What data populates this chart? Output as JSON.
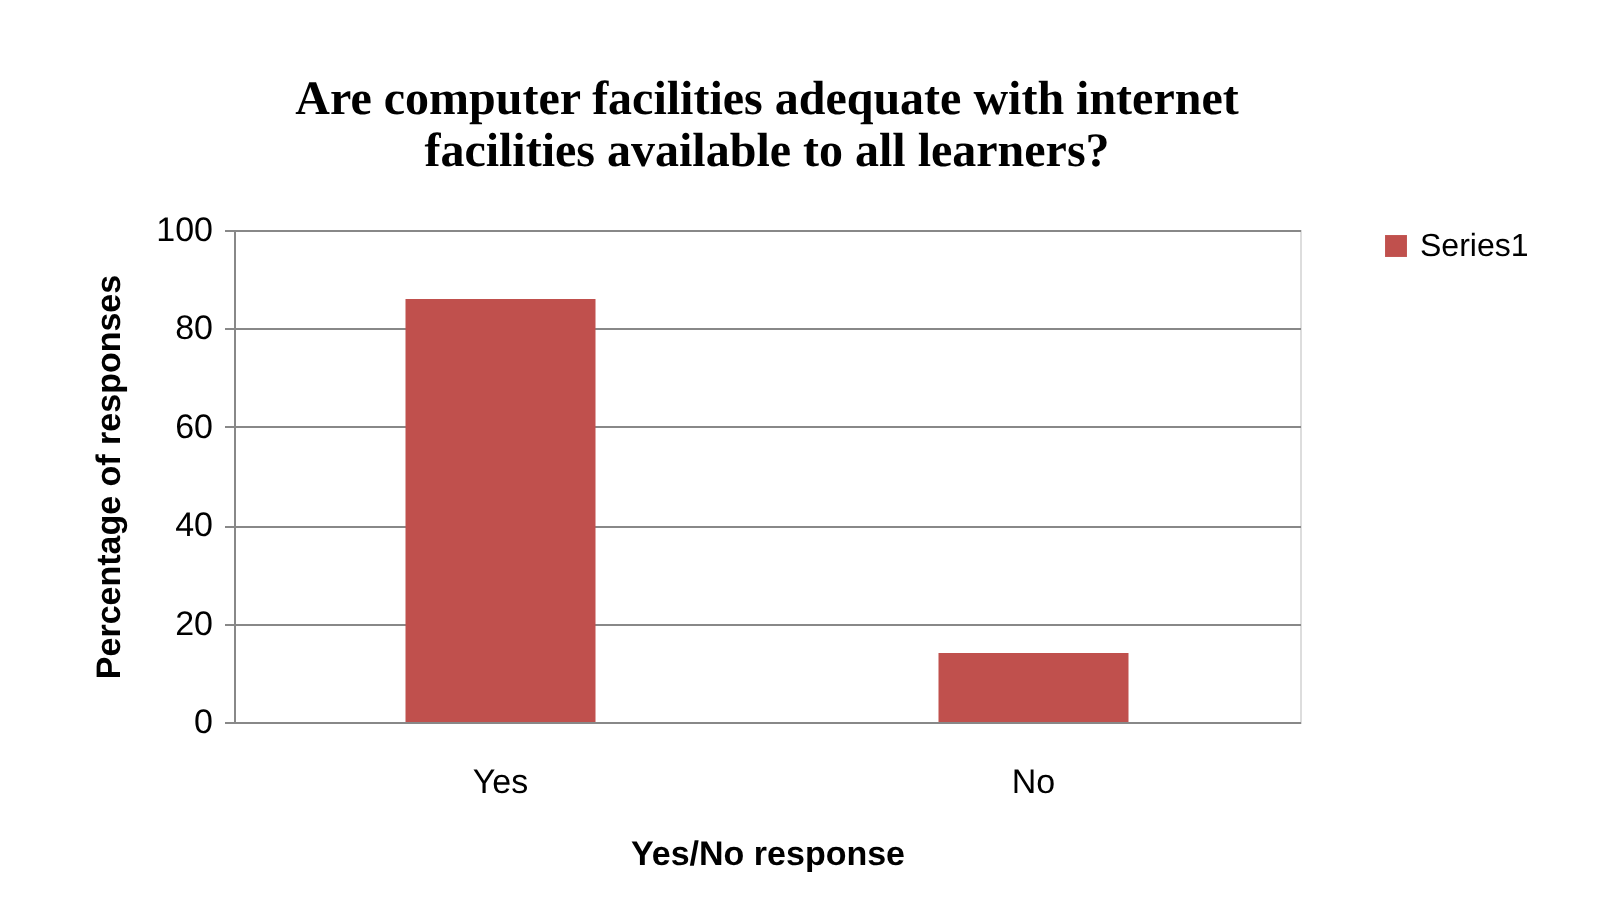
{
  "chart_data": {
    "type": "bar",
    "title": "Are computer facilities adequate with internet facilities available to all learners?",
    "xlabel": "Yes/No response",
    "ylabel": "Percentage of responses",
    "categories": [
      "Yes",
      "No"
    ],
    "series": [
      {
        "name": "Series1",
        "color": "#c0504d",
        "values": [
          86,
          14
        ]
      }
    ],
    "ylim": [
      0,
      100
    ],
    "yticks": [
      0,
      20,
      40,
      60,
      80,
      100
    ],
    "grid": "y",
    "legend": "right"
  }
}
